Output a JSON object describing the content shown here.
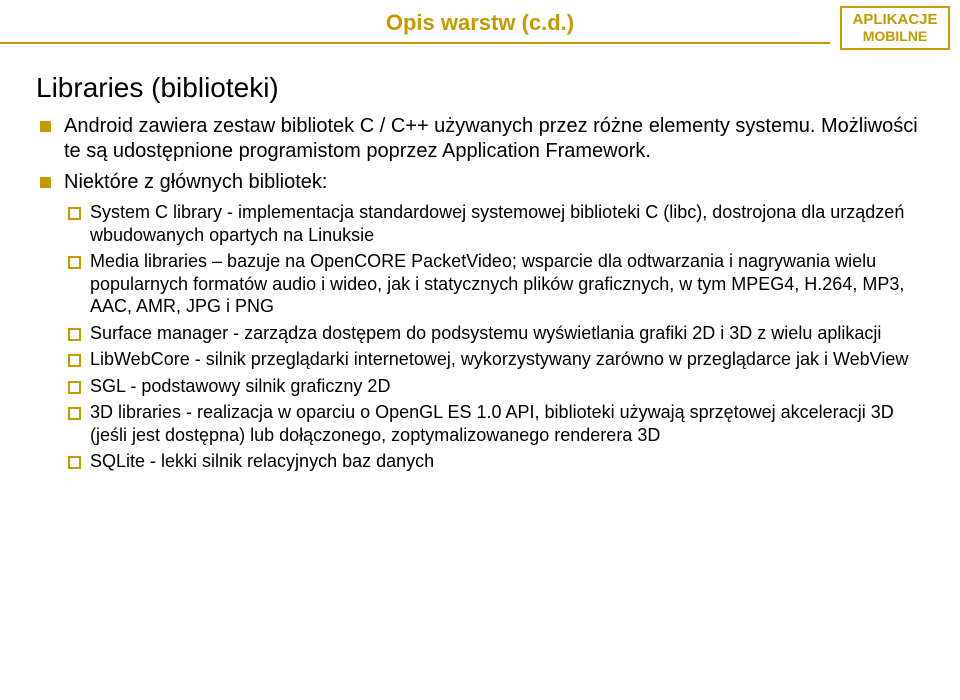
{
  "colors": {
    "accent": "#c49a00",
    "rule": "#c49a00",
    "title": "#c49a00",
    "badge_border": "#c49a00",
    "badge_text": "#c49a00",
    "l1_bullet": "#c49a00",
    "l2_bullet_border": "#c49a00",
    "text": "#000000"
  },
  "slide": {
    "title": "Opis warstw (c.d.)",
    "badge_line1": "APLIKACJE",
    "badge_line2": "MOBILNE",
    "heading": "Libraries (biblioteki)",
    "bullets": [
      {
        "text": "Android zawiera zestaw bibliotek C / C++ używanych przez różne elementy systemu. Możliwości te są udostępnione programistom poprzez Application Framework."
      },
      {
        "text": "Niektóre z głównych bibliotek:",
        "sub": [
          "System C library - implementacja standardowej systemowej biblioteki C (libc), dostrojona dla urządzeń wbudowanych opartych na Linuksie",
          "Media libraries – bazuje na OpenCORE PacketVideo; wsparcie dla odtwarzania i nagrywania wielu popularnych formatów audio i wideo, jak i statycznych plików graficznych, w tym MPEG4, H.264, MP3, AAC, AMR, JPG i PNG",
          "Surface manager - zarządza dostępem do podsystemu wyświetlania grafiki 2D i 3D z wielu aplikacji",
          "LibWebCore - silnik przeglądarki internetowej, wykorzystywany zarówno w przeglądarce jak i WebView",
          "SGL - podstawowy silnik graficzny 2D",
          "3D libraries - realizacja w oparciu o OpenGL ES 1.0 API, biblioteki używają sprzętowej akceleracji 3D (jeśli jest dostępna) lub dołączonego, zoptymalizowanego renderera 3D",
          "SQLite - lekki silnik relacyjnych baz danych"
        ]
      }
    ]
  }
}
